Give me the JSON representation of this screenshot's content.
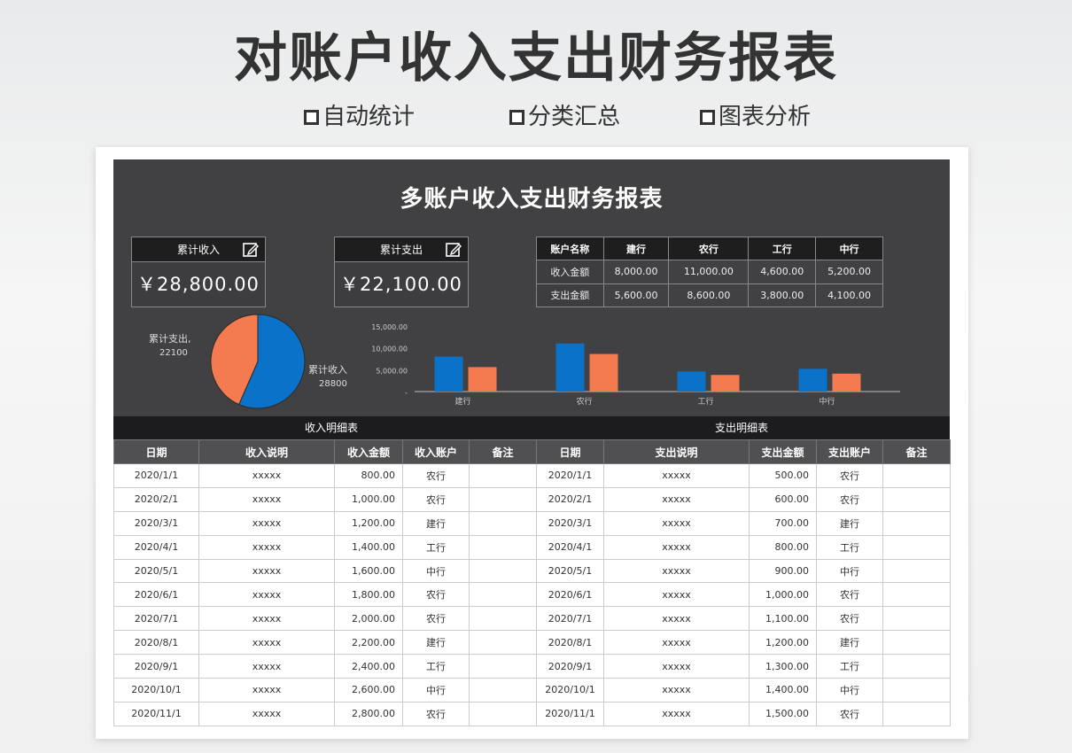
{
  "hero": {
    "title": "对账户收入支出财务报表",
    "tags": [
      "自动统计",
      "分类汇总",
      "图表分析"
    ]
  },
  "dashboard": {
    "title": "多账户收入支出财务报表",
    "income_card": {
      "label": "累计收入",
      "value": "￥28,800.00"
    },
    "expense_card": {
      "label": "累计支出",
      "value": "￥22,100.00"
    },
    "account_table": {
      "headers": [
        "账户名称",
        "建行",
        "农行",
        "工行",
        "中行"
      ],
      "rows": [
        [
          "收入金额",
          "8,000.00",
          "11,000.00",
          "4,600.00",
          "5,200.00"
        ],
        [
          "支出金额",
          "5,600.00",
          "8,600.00",
          "3,800.00",
          "4,100.00"
        ]
      ]
    }
  },
  "chart_data": [
    {
      "type": "pie",
      "categories": [
        "累计收入",
        "累计支出"
      ],
      "values": [
        28800,
        22100
      ],
      "labels": [
        {
          "name": "累计收入",
          "value": "28800"
        },
        {
          "name": "累计支出,",
          "value": "22100"
        }
      ],
      "colors": [
        "#0a72c9",
        "#f47a4f"
      ]
    },
    {
      "type": "bar",
      "categories": [
        "建行",
        "农行",
        "工行",
        "中行"
      ],
      "series": [
        {
          "values": [
            8000,
            11000,
            4600,
            5200
          ],
          "color": "#0a72c9"
        },
        {
          "values": [
            5600,
            8600,
            3800,
            4100
          ],
          "color": "#f47a4f"
        }
      ],
      "yticks": [
        "15,000.00",
        "10,000.00",
        "5,000.00",
        "-"
      ],
      "ylim": [
        0,
        15000
      ],
      "grid": false
    }
  ],
  "detail": {
    "income_title": "收入明细表",
    "expense_title": "支出明细表",
    "income_headers": [
      "日期",
      "收入说明",
      "收入金额",
      "收入账户",
      "备注"
    ],
    "expense_headers": [
      "日期",
      "支出说明",
      "支出金额",
      "支出账户",
      "备注"
    ],
    "rows": [
      {
        "date": "2020/1/1",
        "desc": "xxxxx",
        "amount": "800.00",
        "acct": "农行",
        "e_date": "2020/1/1",
        "e_desc": "xxxxx",
        "e_amount": "500.00",
        "e_acct": "农行"
      },
      {
        "date": "2020/2/1",
        "desc": "xxxxx",
        "amount": "1,000.00",
        "acct": "农行",
        "e_date": "2020/2/1",
        "e_desc": "xxxxx",
        "e_amount": "600.00",
        "e_acct": "农行"
      },
      {
        "date": "2020/3/1",
        "desc": "xxxxx",
        "amount": "1,200.00",
        "acct": "建行",
        "e_date": "2020/3/1",
        "e_desc": "xxxxx",
        "e_amount": "700.00",
        "e_acct": "建行"
      },
      {
        "date": "2020/4/1",
        "desc": "xxxxx",
        "amount": "1,400.00",
        "acct": "工行",
        "e_date": "2020/4/1",
        "e_desc": "xxxxx",
        "e_amount": "800.00",
        "e_acct": "工行"
      },
      {
        "date": "2020/5/1",
        "desc": "xxxxx",
        "amount": "1,600.00",
        "acct": "中行",
        "e_date": "2020/5/1",
        "e_desc": "xxxxx",
        "e_amount": "900.00",
        "e_acct": "中行"
      },
      {
        "date": "2020/6/1",
        "desc": "xxxxx",
        "amount": "1,800.00",
        "acct": "农行",
        "e_date": "2020/6/1",
        "e_desc": "xxxxx",
        "e_amount": "1,000.00",
        "e_acct": "农行"
      },
      {
        "date": "2020/7/1",
        "desc": "xxxxx",
        "amount": "2,000.00",
        "acct": "农行",
        "e_date": "2020/7/1",
        "e_desc": "xxxxx",
        "e_amount": "1,100.00",
        "e_acct": "农行"
      },
      {
        "date": "2020/8/1",
        "desc": "xxxxx",
        "amount": "2,200.00",
        "acct": "建行",
        "e_date": "2020/8/1",
        "e_desc": "xxxxx",
        "e_amount": "1,200.00",
        "e_acct": "建行"
      },
      {
        "date": "2020/9/1",
        "desc": "xxxxx",
        "amount": "2,400.00",
        "acct": "工行",
        "e_date": "2020/9/1",
        "e_desc": "xxxxx",
        "e_amount": "1,300.00",
        "e_acct": "工行"
      },
      {
        "date": "2020/10/1",
        "desc": "xxxxx",
        "amount": "2,600.00",
        "acct": "中行",
        "e_date": "2020/10/1",
        "e_desc": "xxxxx",
        "e_amount": "1,400.00",
        "e_acct": "中行"
      },
      {
        "date": "2020/11/1",
        "desc": "xxxxx",
        "amount": "2,800.00",
        "acct": "农行",
        "e_date": "2020/11/1",
        "e_desc": "xxxxx",
        "e_amount": "1,500.00",
        "e_acct": "农行"
      }
    ]
  }
}
